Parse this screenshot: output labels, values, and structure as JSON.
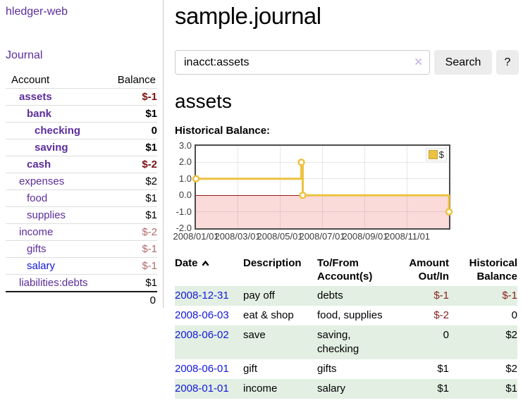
{
  "brand": "hledger-web",
  "sidebar": {
    "journal_link": "Journal",
    "accounts_header": {
      "account": "Account",
      "balance": "Balance"
    },
    "accounts": [
      {
        "name": "assets",
        "level": 1,
        "bold": true,
        "balance": "$-1",
        "balance_style": "neg-strong",
        "link_blue": false
      },
      {
        "name": "bank",
        "level": 2,
        "bold": true,
        "balance": "$1",
        "balance_style": "normal",
        "link_blue": false
      },
      {
        "name": "checking",
        "level": 3,
        "bold": true,
        "balance": "0",
        "balance_style": "normal",
        "link_blue": false
      },
      {
        "name": "saving",
        "level": 3,
        "bold": true,
        "balance": "$1",
        "balance_style": "normal",
        "link_blue": false
      },
      {
        "name": "cash",
        "level": 2,
        "bold": true,
        "balance": "$-2",
        "balance_style": "neg-strong",
        "link_blue": false
      },
      {
        "name": "expenses",
        "level": 1,
        "bold": false,
        "balance": "$2",
        "balance_style": "normal",
        "link_blue": false
      },
      {
        "name": "food",
        "level": 2,
        "bold": false,
        "balance": "$1",
        "balance_style": "normal",
        "link_blue": false
      },
      {
        "name": "supplies",
        "level": 2,
        "bold": false,
        "balance": "$1",
        "balance_style": "normal",
        "link_blue": false
      },
      {
        "name": "income",
        "level": 1,
        "bold": false,
        "balance": "$-2",
        "balance_style": "neg-muted",
        "link_blue": false
      },
      {
        "name": "gifts",
        "level": 2,
        "bold": false,
        "balance": "$-1",
        "balance_style": "neg-muted",
        "link_blue": false
      },
      {
        "name": "salary",
        "level": 2,
        "bold": false,
        "balance": "$-1",
        "balance_style": "neg-muted",
        "link_blue": true
      },
      {
        "name": "liabilities:debts",
        "level": 1,
        "bold": false,
        "balance": "$1",
        "balance_style": "normal",
        "link_blue": false
      }
    ],
    "total": "0"
  },
  "header": {
    "title": "sample.journal"
  },
  "search": {
    "value": "inacct:assets",
    "clear_icon": "✕",
    "button_label": "Search",
    "help_label": "?"
  },
  "account_page": {
    "title": "assets",
    "chart_label": "Historical Balance:"
  },
  "chart_data": {
    "type": "line",
    "step": true,
    "title": "",
    "xlabel": "",
    "ylabel": "",
    "x": [
      "2008-01-01",
      "2008-06-01",
      "2008-06-03",
      "2008-12-31"
    ],
    "series": [
      {
        "name": "$",
        "values": [
          1,
          2,
          0,
          -1
        ]
      }
    ],
    "xrange": [
      "2008-01-01",
      "2008-12-31"
    ],
    "ylim": [
      -2,
      3
    ],
    "yticks": [
      "3.0",
      "2.0",
      "1.0",
      "0.0",
      "-1.0",
      "-2.0"
    ],
    "xticks": [
      "2008/01/01",
      "2008/03/01",
      "2008/05/01",
      "2008/07/01",
      "2008/09/01",
      "2008/11/01"
    ],
    "legend_position": "top-right",
    "grid": true,
    "negative_region_shaded": true
  },
  "table": {
    "headers": {
      "date": "Date",
      "description": "Description",
      "tofrom": [
        "To/From",
        "Account(s)"
      ],
      "amount": [
        "Amount",
        "Out/In"
      ],
      "historical": [
        "Historical",
        "Balance"
      ]
    },
    "sort": {
      "column": "date",
      "direction": "ascending"
    },
    "rows": [
      {
        "date": "2008-12-31",
        "description": "pay off",
        "accounts": [
          "debts"
        ],
        "amount": "$-1",
        "amount_negative": true,
        "historical": "$-1",
        "historical_negative": true
      },
      {
        "date": "2008-06-03",
        "description": "eat & shop",
        "accounts": [
          "food",
          "supplies"
        ],
        "amount": "$-2",
        "amount_negative": true,
        "historical": "0",
        "historical_negative": false
      },
      {
        "date": "2008-06-02",
        "description": "save",
        "accounts": [
          "saving",
          "checking"
        ],
        "amount": "0",
        "amount_negative": false,
        "historical": "$2",
        "historical_negative": false
      },
      {
        "date": "2008-06-01",
        "description": "gift",
        "accounts": [
          "gifts"
        ],
        "amount": "$1",
        "amount_negative": false,
        "historical": "$2",
        "historical_negative": false
      },
      {
        "date": "2008-01-01",
        "description": "income",
        "accounts": [
          "salary"
        ],
        "amount": "$1",
        "amount_negative": false,
        "historical": "$1",
        "historical_negative": false
      }
    ]
  },
  "colors": {
    "link_purple": "#5b2d9b",
    "link_blue": "#1318dd",
    "neg_strong": "#7c1010",
    "neg_muted": "#b26a6a",
    "table_neg": "#8b1e1e",
    "row_green": "#e2efe2",
    "chart_line": "#edc240",
    "chart_negative_fill": "#fbdada",
    "chart_zero_line": "#991818",
    "button_bg": "#ececec",
    "clear_icon": "#cfc2e8"
  }
}
